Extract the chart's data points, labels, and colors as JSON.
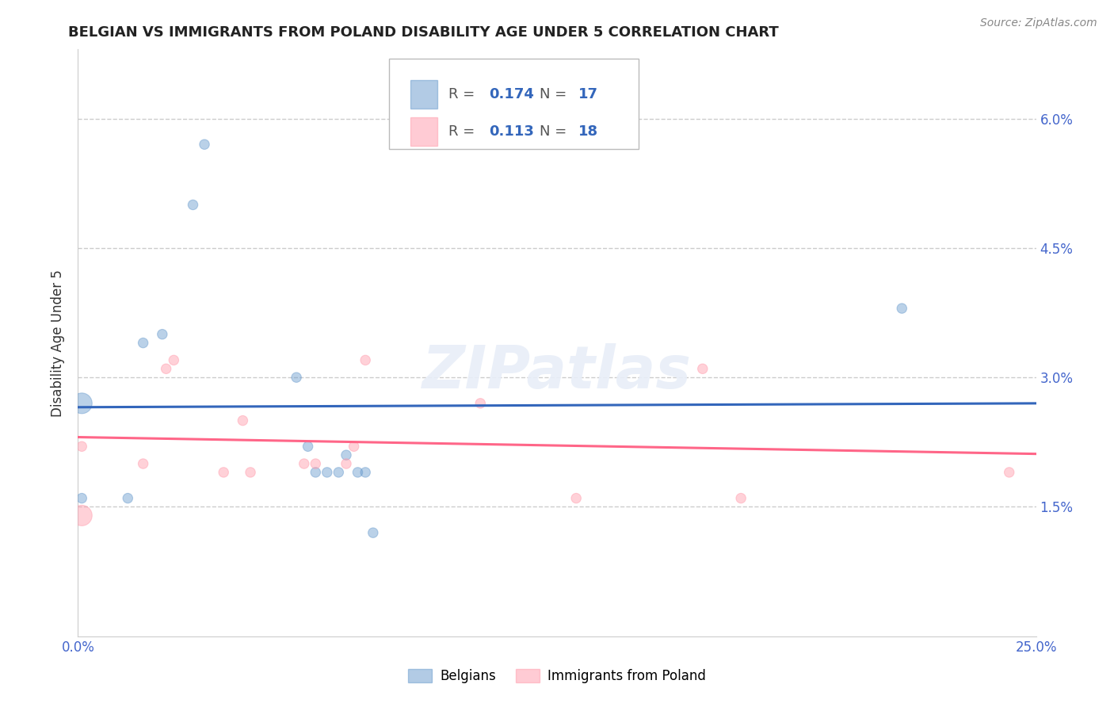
{
  "title": "BELGIAN VS IMMIGRANTS FROM POLAND DISABILITY AGE UNDER 5 CORRELATION CHART",
  "source": "Source: ZipAtlas.com",
  "ylabel": "Disability Age Under 5",
  "xlim": [
    0.0,
    0.25
  ],
  "ylim": [
    0.0,
    0.068
  ],
  "yticks": [
    0.015,
    0.03,
    0.045,
    0.06
  ],
  "ytick_labels": [
    "1.5%",
    "3.0%",
    "4.5%",
    "6.0%"
  ],
  "belgian_color": "#6699cc",
  "poland_color": "#ff99aa",
  "belgian_line_color": "#3366bb",
  "poland_line_color": "#ff6688",
  "legend_R_belgian": "0.174",
  "legend_N_belgian": "17",
  "legend_R_poland": "0.113",
  "legend_N_poland": "18",
  "belgian_x": [
    0.001,
    0.001,
    0.013,
    0.017,
    0.022,
    0.03,
    0.033,
    0.057,
    0.06,
    0.062,
    0.065,
    0.068,
    0.07,
    0.073,
    0.075,
    0.077,
    0.215
  ],
  "belgian_y": [
    0.027,
    0.016,
    0.016,
    0.034,
    0.035,
    0.05,
    0.057,
    0.03,
    0.022,
    0.019,
    0.019,
    0.019,
    0.021,
    0.019,
    0.019,
    0.012,
    0.038
  ],
  "belgian_size": [
    350,
    80,
    80,
    80,
    80,
    80,
    80,
    80,
    80,
    80,
    80,
    80,
    80,
    80,
    80,
    80,
    80
  ],
  "poland_x": [
    0.001,
    0.001,
    0.017,
    0.023,
    0.025,
    0.038,
    0.043,
    0.045,
    0.059,
    0.062,
    0.07,
    0.072,
    0.075,
    0.105,
    0.13,
    0.163,
    0.173,
    0.243
  ],
  "poland_y": [
    0.014,
    0.022,
    0.02,
    0.031,
    0.032,
    0.019,
    0.025,
    0.019,
    0.02,
    0.02,
    0.02,
    0.022,
    0.032,
    0.027,
    0.016,
    0.031,
    0.016,
    0.019
  ],
  "poland_size": [
    350,
    80,
    80,
    80,
    80,
    80,
    80,
    80,
    80,
    80,
    80,
    80,
    80,
    80,
    80,
    80,
    80,
    80
  ],
  "watermark": "ZIPatlas",
  "background_color": "#ffffff",
  "grid_color": "#cccccc",
  "title_fontsize": 13,
  "axis_label_fontsize": 12,
  "tick_fontsize": 12,
  "tick_color": "#4466cc",
  "source_fontsize": 10
}
